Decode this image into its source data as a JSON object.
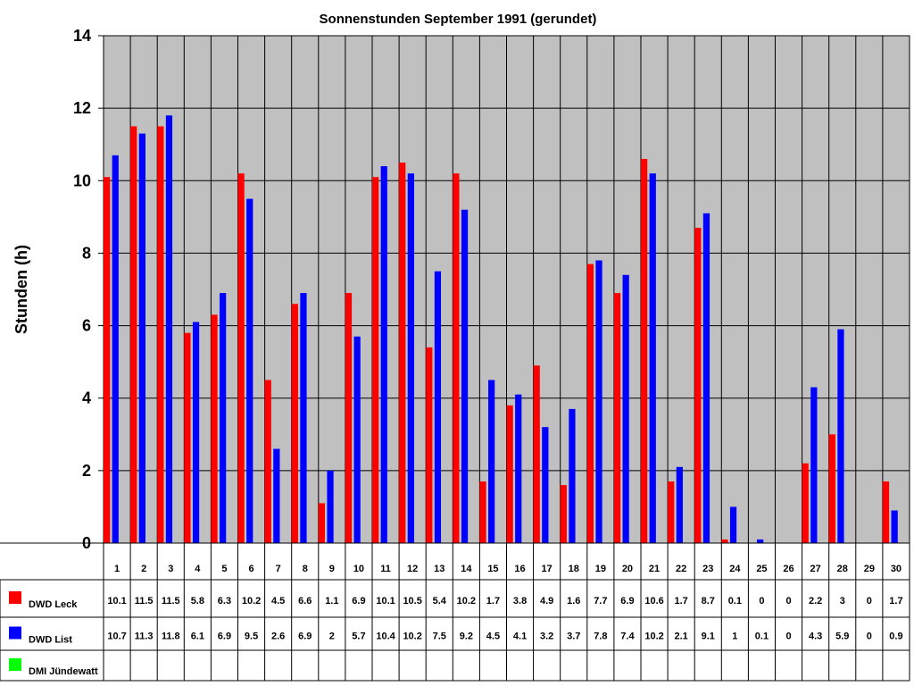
{
  "chart_data": {
    "type": "bar",
    "title": "Sonnenstunden September 1991 (gerundet)",
    "ylabel": "Stunden (h)",
    "xlabel": "",
    "ylim": [
      0,
      14
    ],
    "yticks": [
      0,
      2,
      4,
      6,
      8,
      10,
      12,
      14
    ],
    "grid": true,
    "categories": [
      "1",
      "2",
      "3",
      "4",
      "5",
      "6",
      "7",
      "8",
      "9",
      "10",
      "11",
      "12",
      "13",
      "14",
      "15",
      "16",
      "17",
      "18",
      "19",
      "20",
      "21",
      "22",
      "23",
      "24",
      "25",
      "26",
      "27",
      "28",
      "29",
      "30"
    ],
    "series": [
      {
        "name": "DWD Leck",
        "color": "#ff0000",
        "values": [
          10.1,
          11.5,
          11.5,
          5.8,
          6.3,
          10.2,
          4.5,
          6.6,
          1.1,
          6.9,
          10.1,
          10.5,
          5.4,
          10.2,
          1.7,
          3.8,
          4.9,
          1.6,
          7.7,
          6.9,
          10.6,
          1.7,
          8.7,
          0.1,
          0,
          0,
          2.2,
          3,
          0,
          1.7
        ]
      },
      {
        "name": "DWD List",
        "color": "#0000ff",
        "values": [
          10.7,
          11.3,
          11.8,
          6.1,
          6.9,
          9.5,
          2.6,
          6.9,
          2,
          5.7,
          10.4,
          10.2,
          7.5,
          9.2,
          4.5,
          4.1,
          3.2,
          3.7,
          7.8,
          7.4,
          10.2,
          2.1,
          9.1,
          1,
          0.1,
          0,
          4.3,
          5.9,
          0,
          0.9
        ]
      },
      {
        "name": "DMI Jündewatt",
        "color": "#00ff00",
        "values": [
          null,
          null,
          null,
          null,
          null,
          null,
          null,
          null,
          null,
          null,
          null,
          null,
          null,
          null,
          null,
          null,
          null,
          null,
          null,
          null,
          null,
          null,
          null,
          null,
          null,
          null,
          null,
          null,
          null,
          null
        ]
      }
    ],
    "plot_background": "#c0c0c0",
    "data_table": true
  }
}
